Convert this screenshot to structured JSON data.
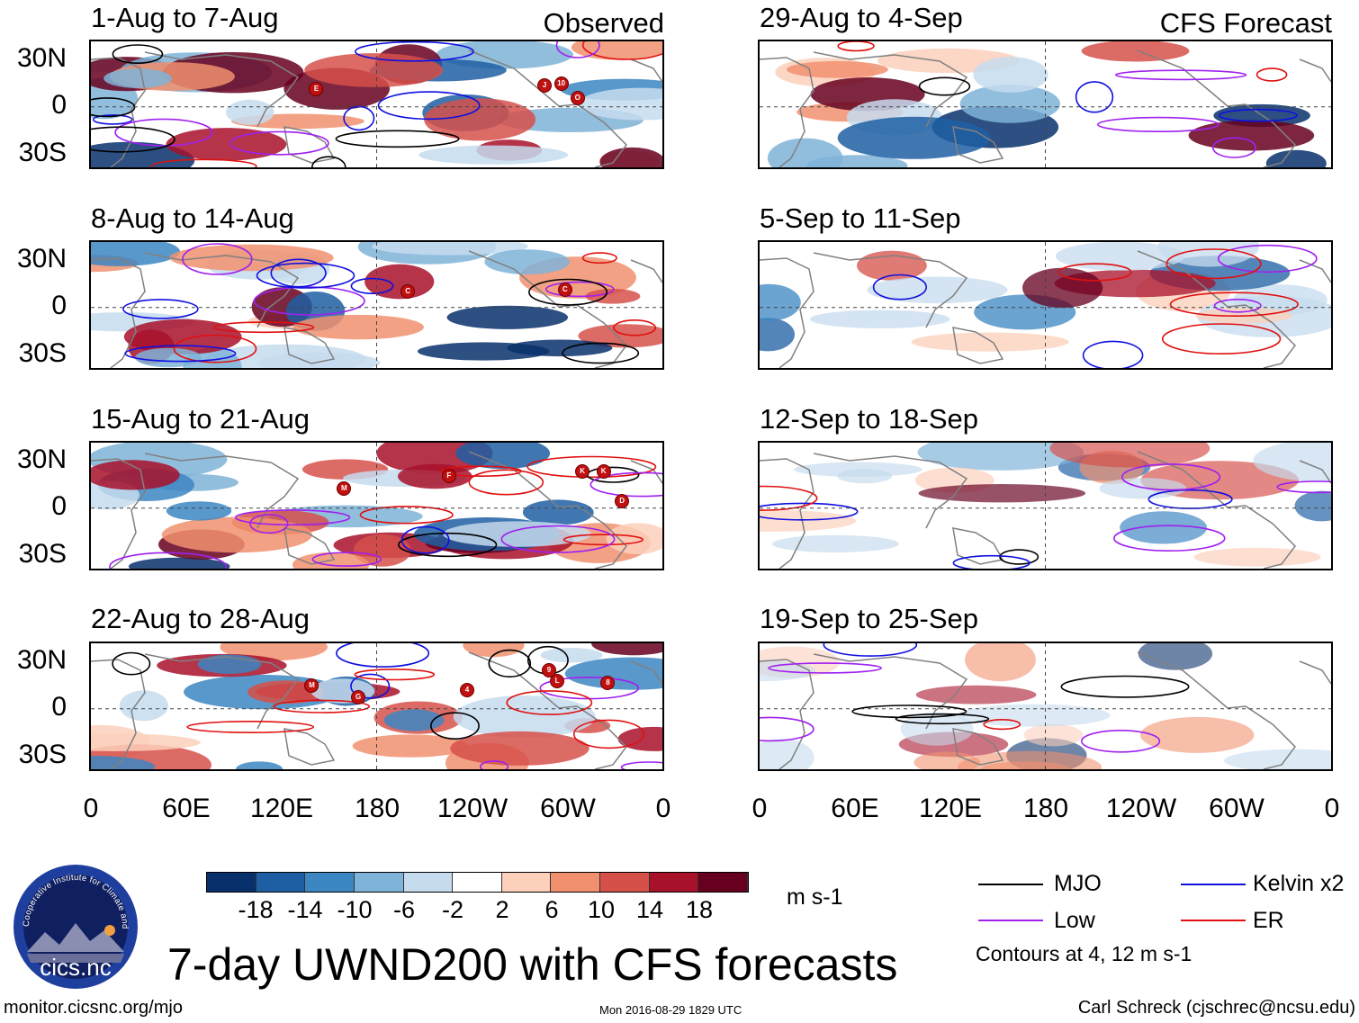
{
  "title": "7-day UWND200 with CFS forecasts",
  "left_header_tag": "Observed",
  "right_header_tag": "CFS Forecast",
  "panels_left": [
    {
      "period": "1-Aug to 7-Aug"
    },
    {
      "period": "8-Aug to 14-Aug"
    },
    {
      "period": "15-Aug to 21-Aug"
    },
    {
      "period": "22-Aug to 28-Aug"
    }
  ],
  "panels_right": [
    {
      "period": "29-Aug to 4-Sep"
    },
    {
      "period": "5-Sep to 11-Sep"
    },
    {
      "period": "12-Sep to 18-Sep"
    },
    {
      "period": "19-Sep to 25-Sep"
    }
  ],
  "lat_labels": [
    "30N",
    "0",
    "30S"
  ],
  "lon_labels": [
    "0",
    "60E",
    "120E",
    "180",
    "120W",
    "60W",
    "0"
  ],
  "colorbar": {
    "ticks": [
      "-18",
      "-14",
      "-10",
      "-6",
      "-2",
      "2",
      "6",
      "10",
      "14",
      "18"
    ],
    "unit": "m s-1",
    "colors": [
      "#08306b",
      "#1e5fa3",
      "#3c86c2",
      "#7fb3d8",
      "#c6dcee",
      "#ffffff",
      "#fcd0bb",
      "#f1906f",
      "#d6504a",
      "#a8112a",
      "#67001f"
    ]
  },
  "legend": {
    "items": [
      {
        "label": "MJO",
        "color": "#000000"
      },
      {
        "label": "Kelvin x2",
        "color": "#1010e0"
      },
      {
        "label": "Low",
        "color": "#a020f0"
      },
      {
        "label": "ER",
        "color": "#e01010"
      }
    ],
    "note": "Contours at 4, 12 m s-1"
  },
  "storms": [
    {
      "panel": 0,
      "label": "O"
    },
    {
      "panel": 0,
      "label": "10"
    },
    {
      "panel": 0,
      "label": "J"
    },
    {
      "panel": 0,
      "label": "E"
    },
    {
      "panel": 1,
      "label": "C"
    },
    {
      "panel": 1,
      "label": "C"
    },
    {
      "panel": 2,
      "label": "D"
    },
    {
      "panel": 2,
      "label": "K"
    },
    {
      "panel": 2,
      "label": "M"
    },
    {
      "panel": 2,
      "label": "K"
    },
    {
      "panel": 2,
      "label": "F"
    },
    {
      "panel": 3,
      "label": "4"
    },
    {
      "panel": 3,
      "label": "M"
    },
    {
      "panel": 3,
      "label": "L"
    },
    {
      "panel": 3,
      "label": "9"
    },
    {
      "panel": 3,
      "label": "8"
    },
    {
      "panel": 3,
      "label": "G"
    }
  ],
  "logo": {
    "arc_text": "Cooperative Institute for Climate and Satellites",
    "name": "cics.nc"
  },
  "footer": {
    "url": "monitor.cicsnc.org/mjo",
    "timestamp": "Mon 2016-08-29 1829 UTC",
    "author": "Carl Schreck (cjschrec@ncsu.edu)"
  }
}
